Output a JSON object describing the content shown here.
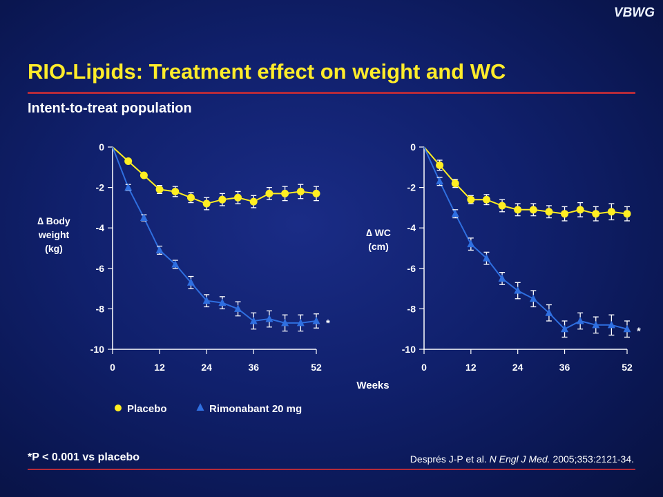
{
  "header": {
    "brand": "VBWG",
    "title": "RIO-Lipids: Treatment effect on weight and WC",
    "subtitle": "Intent-to-treat population"
  },
  "footer": {
    "footnote": "*P < 0.001 vs placebo",
    "citation_authors": "Després J-P et al.",
    "citation_journal": "N Engl J Med.",
    "citation_rest": "2005;353:2121-34."
  },
  "colors": {
    "placebo": "#ffee22",
    "rimonabant": "#2f6fe0",
    "axis": "#ffffff",
    "rule": "#b62b3a"
  },
  "chart_data": [
    {
      "type": "line",
      "ylabel": [
        "∆ Body",
        "weight",
        "(kg)"
      ],
      "xlabel": "Weeks",
      "xlim": [
        0,
        52
      ],
      "ylim": [
        -10,
        0
      ],
      "xticks": [
        0,
        12,
        24,
        36,
        52
      ],
      "yticks": [
        0,
        -2,
        -4,
        -6,
        -8,
        -10
      ],
      "significance": "*",
      "series": [
        {
          "name": "Placebo",
          "marker": "circle",
          "x": [
            0,
            4,
            8,
            12,
            16,
            20,
            24,
            28,
            32,
            36,
            40,
            44,
            48,
            52
          ],
          "y": [
            0,
            -0.7,
            -1.4,
            -2.1,
            -2.2,
            -2.5,
            -2.8,
            -2.6,
            -2.5,
            -2.7,
            -2.3,
            -2.3,
            -2.2,
            -2.3
          ],
          "err": [
            0,
            0,
            0,
            0.2,
            0.25,
            0.25,
            0.3,
            0.3,
            0.3,
            0.3,
            0.3,
            0.35,
            0.35,
            0.35
          ]
        },
        {
          "name": "Rimonabant 20 mg",
          "marker": "triangle",
          "x": [
            0,
            4,
            8,
            12,
            16,
            20,
            24,
            28,
            32,
            36,
            40,
            44,
            48,
            52
          ],
          "y": [
            0,
            -2.0,
            -3.5,
            -5.1,
            -5.8,
            -6.7,
            -7.6,
            -7.7,
            -8.0,
            -8.6,
            -8.5,
            -8.7,
            -8.7,
            -8.6
          ],
          "err": [
            0,
            0.15,
            0.15,
            0.2,
            0.2,
            0.3,
            0.3,
            0.3,
            0.35,
            0.4,
            0.4,
            0.4,
            0.4,
            0.35
          ]
        }
      ]
    },
    {
      "type": "line",
      "ylabel": [
        "∆ WC",
        "(cm)"
      ],
      "xlabel": "Weeks",
      "xlim": [
        0,
        52
      ],
      "ylim": [
        -10,
        0
      ],
      "xticks": [
        0,
        12,
        24,
        36,
        52
      ],
      "yticks": [
        0,
        -2,
        -4,
        -6,
        -8,
        -10
      ],
      "significance": "*",
      "series": [
        {
          "name": "Placebo",
          "marker": "circle",
          "x": [
            0,
            4,
            8,
            12,
            16,
            20,
            24,
            28,
            32,
            36,
            40,
            44,
            48,
            52
          ],
          "y": [
            0,
            -0.9,
            -1.8,
            -2.6,
            -2.6,
            -2.9,
            -3.1,
            -3.1,
            -3.2,
            -3.3,
            -3.1,
            -3.3,
            -3.2,
            -3.3
          ],
          "err": [
            0,
            0.25,
            0.2,
            0.2,
            0.25,
            0.3,
            0.3,
            0.3,
            0.3,
            0.35,
            0.35,
            0.35,
            0.4,
            0.35
          ]
        },
        {
          "name": "Rimonabant 20 mg",
          "marker": "triangle",
          "x": [
            0,
            4,
            8,
            12,
            16,
            20,
            24,
            28,
            32,
            36,
            40,
            44,
            48,
            52
          ],
          "y": [
            0,
            -1.7,
            -3.3,
            -4.8,
            -5.5,
            -6.5,
            -7.1,
            -7.5,
            -8.2,
            -9.0,
            -8.6,
            -8.8,
            -8.8,
            -9.0
          ],
          "err": [
            0,
            0.2,
            0.2,
            0.3,
            0.3,
            0.3,
            0.4,
            0.4,
            0.4,
            0.4,
            0.4,
            0.4,
            0.5,
            0.4
          ]
        }
      ]
    }
  ]
}
